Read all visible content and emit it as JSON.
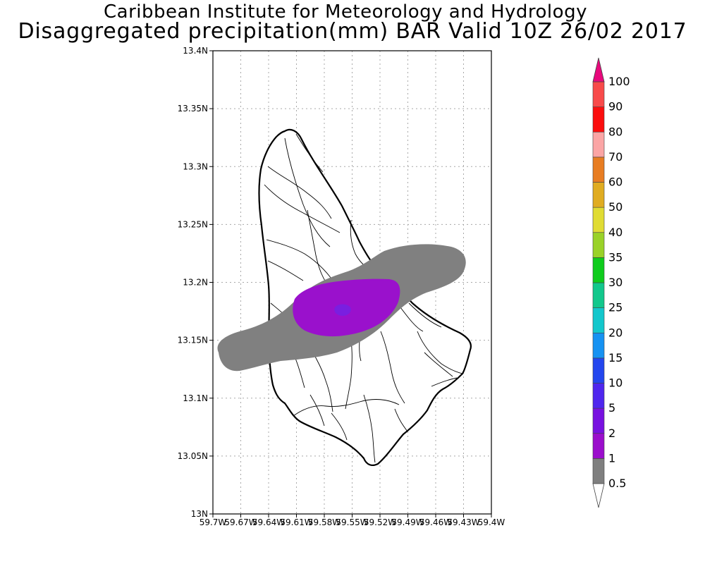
{
  "title": {
    "line1": "Caribbean Institute for Meteorology and Hydrology",
    "line2": "Disaggregated precipitation(mm) BAR Valid 10Z 26/02 2017"
  },
  "map": {
    "region": "Barbados",
    "lon_range": [
      -59.7,
      -59.4
    ],
    "lat_range": [
      13.0,
      13.4
    ],
    "grid": true,
    "x_ticks": [
      "59.7W",
      "59.67W",
      "59.64W",
      "59.61W",
      "59.58W",
      "59.55W",
      "59.52W",
      "59.49W",
      "59.46W",
      "59.43W",
      "59.4W"
    ],
    "y_ticks": [
      "13N",
      "13.05N",
      "13.1N",
      "13.15N",
      "13.2N",
      "13.25N",
      "13.3N",
      "13.35N",
      "13.4N"
    ],
    "shaded_areas": [
      {
        "level": "0.5-1 mm",
        "color": "#808080"
      },
      {
        "level": "1-2 mm",
        "color": "#9a11cc"
      },
      {
        "level": "2-5 mm",
        "color": "#7a1fe0"
      }
    ]
  },
  "colorbar": {
    "labels": [
      "0.5",
      "1",
      "2",
      "5",
      "10",
      "15",
      "20",
      "25",
      "30",
      "35",
      "40",
      "50",
      "60",
      "70",
      "80",
      "90",
      "100"
    ],
    "colors": [
      "#7f7f7f",
      "#9b0ecc",
      "#7811e0",
      "#4f26ee",
      "#2346ee",
      "#1692f2",
      "#13c7cc",
      "#12c88c",
      "#0fcc1c",
      "#9ad228",
      "#e0dc33",
      "#e0ac21",
      "#e87d22",
      "#fba5a5",
      "#fb0d0d",
      "#f84a4a"
    ],
    "under_color": "#ffffff",
    "over_color": "#e8097c"
  }
}
